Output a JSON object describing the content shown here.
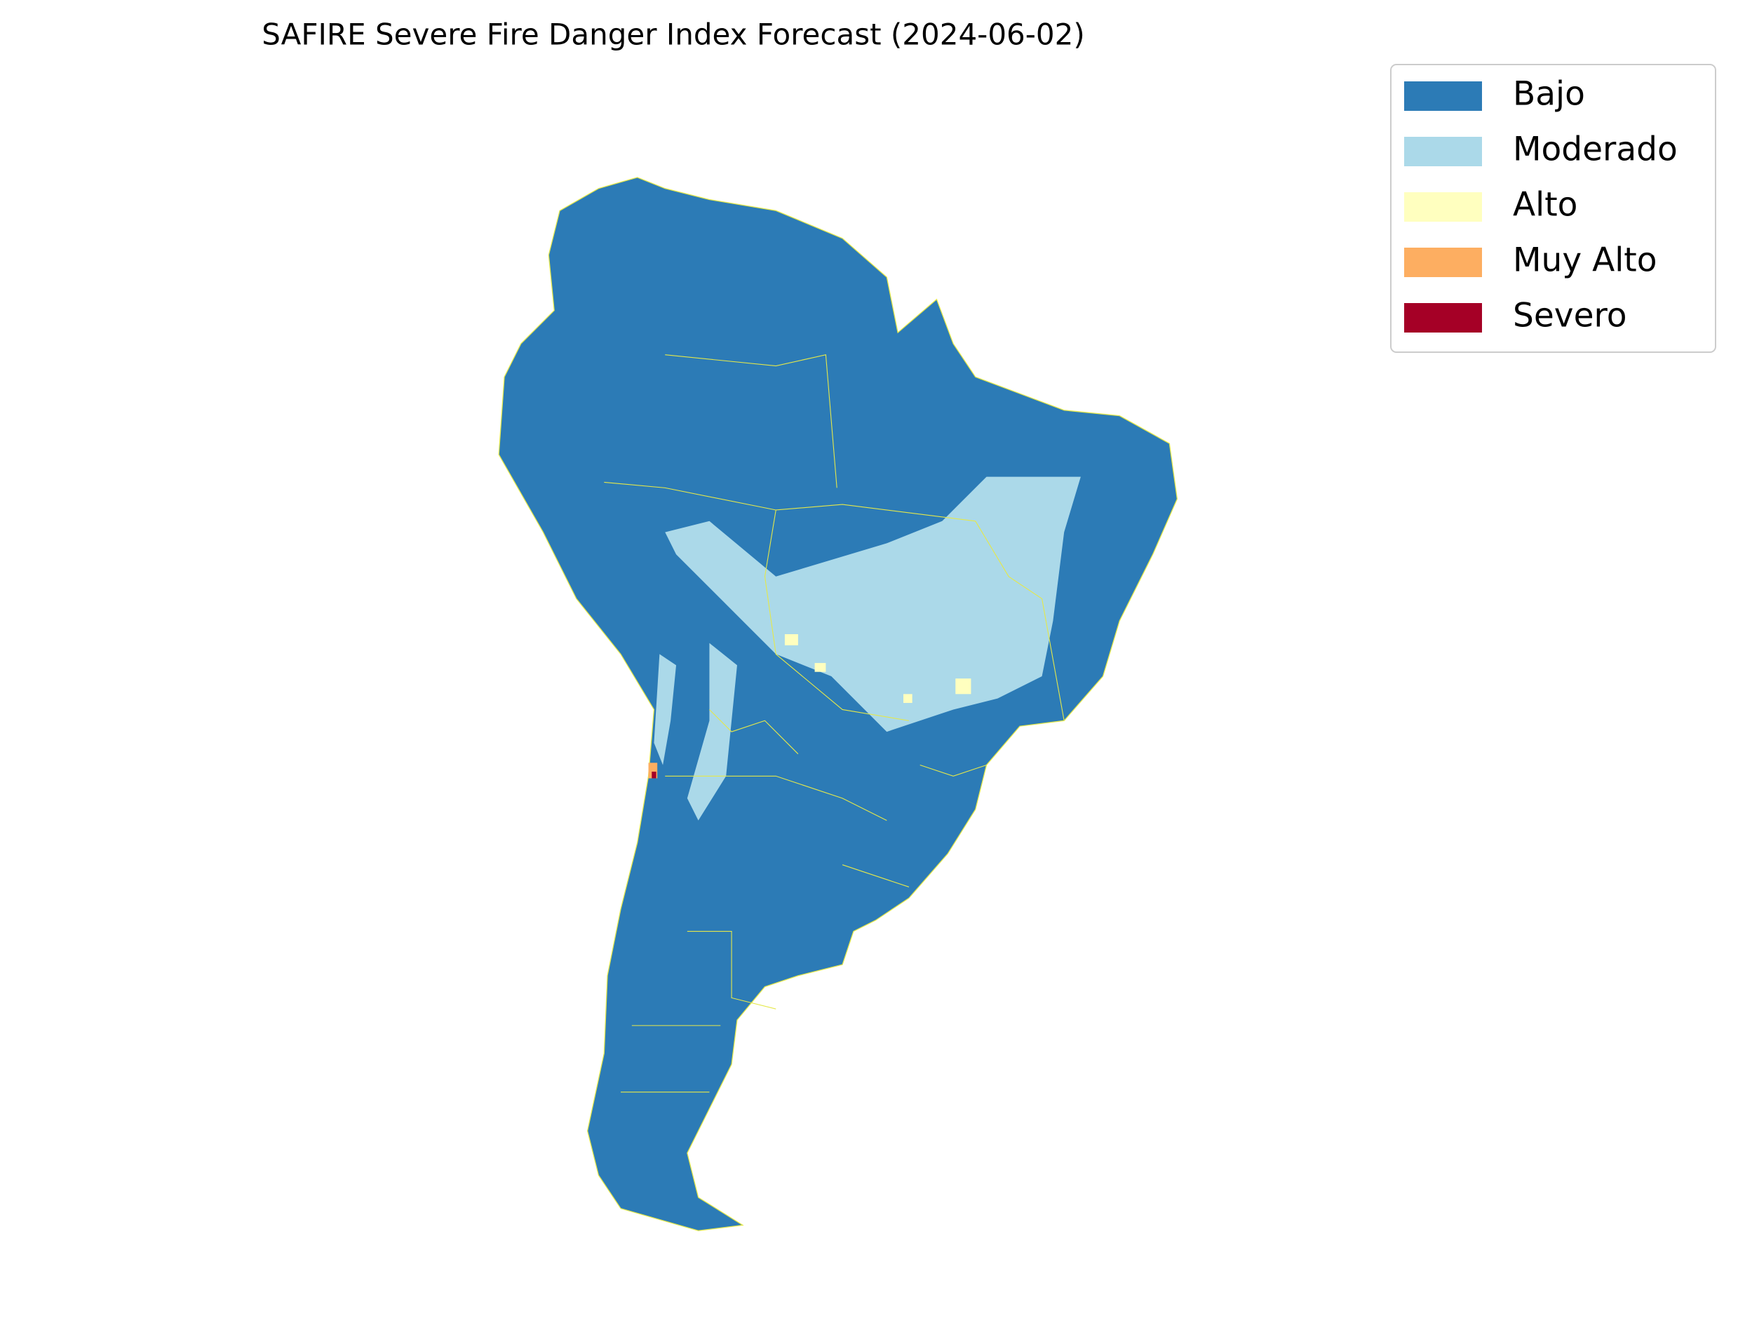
{
  "title": "SAFIRE Severe Fire Danger Index Forecast (2024-06-02)",
  "legend": [
    {
      "label": "Bajo",
      "color": "#2c7bb6"
    },
    {
      "label": "Moderado",
      "color": "#abd9e9"
    },
    {
      "label": "Alto",
      "color": "#ffffbf"
    },
    {
      "label": "Muy Alto",
      "color": "#fdae61"
    },
    {
      "label": "Severo",
      "color": "#a50026"
    }
  ]
}
